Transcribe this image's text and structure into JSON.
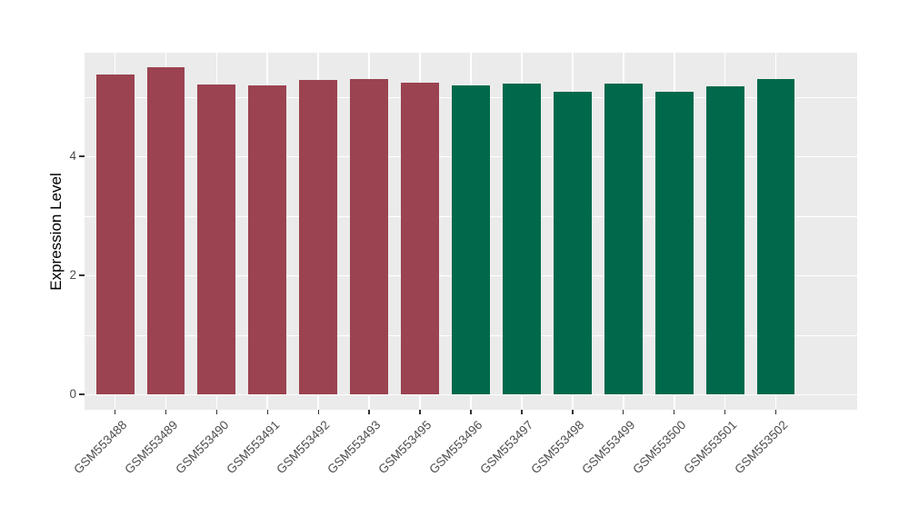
{
  "chart_data": {
    "type": "bar",
    "title": "",
    "xlabel": "",
    "ylabel": "Expression Level",
    "categories": [
      "GSM553488",
      "GSM553489",
      "GSM553490",
      "GSM553491",
      "GSM553492",
      "GSM553493",
      "GSM553495",
      "GSM553496",
      "GSM553497",
      "GSM553498",
      "GSM553499",
      "GSM553500",
      "GSM553501",
      "GSM553502"
    ],
    "values": [
      5.37,
      5.5,
      5.2,
      5.19,
      5.28,
      5.3,
      5.24,
      5.19,
      5.22,
      5.09,
      5.22,
      5.08,
      5.17,
      5.3
    ],
    "bar_colors": [
      "#9B4350",
      "#9B4350",
      "#9B4350",
      "#9B4350",
      "#9B4350",
      "#9B4350",
      "#9B4350",
      "#00694B",
      "#00694B",
      "#00694B",
      "#00694B",
      "#00694B",
      "#00694B",
      "#00694B"
    ],
    "group_colors": {
      "group1": "#9B4350",
      "group2": "#00694B"
    },
    "y_ticks": [
      "0",
      "2",
      "4"
    ],
    "y_tick_values": [
      0,
      2,
      4
    ],
    "y_minor_values": [
      1,
      3,
      5
    ],
    "ylim": [
      -0.29,
      5.75
    ],
    "legend": "none",
    "grid": true,
    "panel_background": "#EBEBEB",
    "grid_color": "#FFFFFF",
    "x_label_rotation_deg": 45
  }
}
